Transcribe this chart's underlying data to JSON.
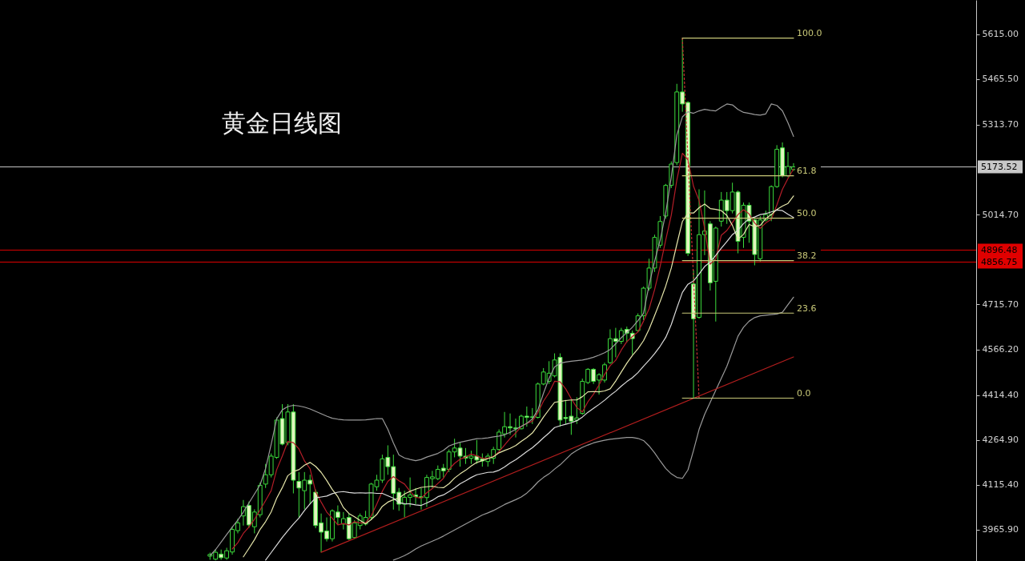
{
  "chart_data": {
    "type": "candlestick",
    "title": "黄金日线图",
    "color": "#3cdc3c",
    "categories": [
      null,
      null,
      null,
      null,
      null,
      null,
      null,
      null,
      null,
      null,
      null,
      null,
      null,
      null,
      null,
      null,
      null,
      null,
      null,
      null,
      null,
      null,
      null,
      null,
      null,
      null,
      null,
      null,
      null,
      null,
      null,
      null,
      null,
      null,
      null,
      null,
      null,
      null,
      null,
      null,
      null,
      null,
      null,
      null,
      null,
      null,
      null,
      null,
      null,
      null,
      null,
      null,
      null,
      null,
      null,
      null,
      null,
      null,
      null,
      null,
      null,
      null,
      null,
      null,
      null,
      null,
      null,
      null,
      null,
      null,
      null,
      null,
      null,
      null,
      null,
      null,
      null,
      null,
      null,
      null,
      null,
      null,
      null,
      null,
      null,
      null,
      null,
      null,
      null,
      null,
      null,
      null,
      null,
      null,
      null,
      null,
      null,
      null,
      null,
      null,
      null,
      null,
      null,
      null,
      null,
      null
    ],
    "ohlc": [
      [
        3878,
        3890,
        3866,
        3884
      ],
      [
        3868,
        3900,
        3864,
        3891
      ],
      [
        3885,
        3900,
        3866,
        3873
      ],
      [
        3872,
        3906,
        3866,
        3896
      ],
      [
        3892,
        3976,
        3883,
        3967
      ],
      [
        3963,
        4003,
        3954,
        3989
      ],
      [
        4012,
        4065,
        3980,
        4043
      ],
      [
        4047,
        4060,
        3972,
        3982
      ],
      [
        3976,
        4034,
        3954,
        4025
      ],
      [
        4016,
        4123,
        4007,
        4114
      ],
      [
        4118,
        4185,
        4105,
        4149
      ],
      [
        4149,
        4220,
        4140,
        4211
      ],
      [
        4207,
        4340,
        4202,
        4331
      ],
      [
        4336,
        4384,
        4247,
        4251
      ],
      [
        4256,
        4384,
        4247,
        4358
      ],
      [
        4358,
        4384,
        4087,
        4131
      ],
      [
        4127,
        4158,
        4007,
        4105
      ],
      [
        4096,
        4158,
        4034,
        4131
      ],
      [
        4131,
        4149,
        4051,
        4118
      ],
      [
        4091,
        4100,
        3971,
        3980
      ],
      [
        3989,
        4020,
        3891,
        3958
      ],
      [
        3962,
        4007,
        3927,
        3936
      ],
      [
        3936,
        4034,
        3927,
        4029
      ],
      [
        4025,
        4047,
        3984,
        4007
      ],
      [
        3985,
        4025,
        3967,
        4003
      ],
      [
        4007,
        4020,
        3932,
        3936
      ],
      [
        3940,
        3998,
        3936,
        3989
      ],
      [
        3980,
        4020,
        3967,
        4012
      ],
      [
        3985,
        4029,
        3980,
        4007
      ],
      [
        4007,
        4122,
        3998,
        4118
      ],
      [
        4109,
        4149,
        4096,
        4131
      ],
      [
        4131,
        4216,
        4122,
        4202
      ],
      [
        4207,
        4247,
        4149,
        4176
      ],
      [
        4176,
        4216,
        4033,
        4087
      ],
      [
        4091,
        4105,
        4029,
        4051
      ],
      [
        4051,
        4096,
        4007,
        4074
      ],
      [
        4074,
        4140,
        4042,
        4082
      ],
      [
        4082,
        4105,
        4051,
        4076
      ],
      [
        4076,
        4105,
        4033,
        4073
      ],
      [
        4073,
        4149,
        4042,
        4140
      ],
      [
        4136,
        4162,
        4105,
        4142
      ],
      [
        4136,
        4180,
        4131,
        4167
      ],
      [
        4171,
        4185,
        4140,
        4162
      ],
      [
        4167,
        4233,
        4158,
        4225
      ],
      [
        4225,
        4269,
        4207,
        4238
      ],
      [
        4238,
        4256,
        4176,
        4211
      ],
      [
        4211,
        4238,
        4185,
        4204
      ],
      [
        4204,
        4229,
        4185,
        4211
      ],
      [
        4211,
        4265,
        4185,
        4198
      ],
      [
        4202,
        4220,
        4176,
        4195
      ],
      [
        4193,
        4220,
        4176,
        4211
      ],
      [
        4204,
        4242,
        4185,
        4233
      ],
      [
        4233,
        4300,
        4229,
        4291
      ],
      [
        4285,
        4358,
        4273,
        4309
      ],
      [
        4309,
        4353,
        4282,
        4305
      ],
      [
        4305,
        4336,
        4273,
        4302
      ],
      [
        4302,
        4349,
        4300,
        4344
      ],
      [
        4344,
        4376,
        4309,
        4340
      ],
      [
        4340,
        4371,
        4318,
        4342
      ],
      [
        4340,
        4456,
        4336,
        4451
      ],
      [
        4451,
        4504,
        4447,
        4491
      ],
      [
        4460,
        4527,
        4451,
        4487
      ],
      [
        4478,
        4553,
        4473,
        4531
      ],
      [
        4540,
        4553,
        4309,
        4331
      ],
      [
        4340,
        4398,
        4318,
        4336
      ],
      [
        4344,
        4398,
        4282,
        4327
      ],
      [
        4331,
        4407,
        4318,
        4338
      ],
      [
        4353,
        4469,
        4349,
        4460
      ],
      [
        4456,
        4504,
        4451,
        4500
      ],
      [
        4500,
        4504,
        4451,
        4460
      ],
      [
        4464,
        4487,
        4416,
        4482
      ],
      [
        4464,
        4522,
        4456,
        4515
      ],
      [
        4522,
        4633,
        4518,
        4602
      ],
      [
        4602,
        4638,
        4540,
        4593
      ],
      [
        4593,
        4638,
        4584,
        4629
      ],
      [
        4633,
        4642,
        4589,
        4620
      ],
      [
        4620,
        4629,
        4549,
        4602
      ],
      [
        4629,
        4686,
        4624,
        4678
      ],
      [
        4678,
        4775,
        4664,
        4770
      ],
      [
        4770,
        4868,
        4762,
        4837
      ],
      [
        4837,
        4948,
        4824,
        4939
      ],
      [
        4913,
        5010,
        4904,
        4992
      ],
      [
        5010,
        5117,
        5001,
        5112
      ],
      [
        5112,
        5192,
        5103,
        5183
      ],
      [
        5188,
        5450,
        5179,
        5423
      ],
      [
        5423,
        5602,
        5357,
        5383
      ],
      [
        5388,
        5392,
        4877,
        4886
      ],
      [
        4784,
        4830,
        4404,
        4668
      ],
      [
        4673,
        5099,
        4668,
        4948
      ],
      [
        4948,
        5095,
        4880,
        4960
      ],
      [
        4984,
        4993,
        4762,
        4788
      ],
      [
        4793,
        4975,
        4659,
        4970
      ],
      [
        4993,
        5090,
        4975,
        5063
      ],
      [
        5063,
        5090,
        4984,
        5028
      ],
      [
        5028,
        5121,
        5019,
        5090
      ],
      [
        5090,
        5095,
        4886,
        4926
      ],
      [
        4939,
        5055,
        4904,
        5046
      ],
      [
        5046,
        5055,
        4921,
        4993
      ],
      [
        4997,
        5001,
        4846,
        4882
      ],
      [
        4868,
        5010,
        4859,
        4997
      ],
      [
        4997,
        5028,
        4992,
        5015
      ],
      [
        5015,
        5112,
        4993,
        5108
      ],
      [
        5108,
        5246,
        5104,
        5232
      ],
      [
        5237,
        5255,
        5139,
        5144
      ],
      [
        5144,
        5223,
        5139,
        5175
      ],
      [
        5165,
        5186,
        5160,
        5173.52
      ]
    ],
    "colors": [
      "#000000",
      "#000000",
      "#e1f5be",
      "#000000",
      "#000000",
      "#000000",
      "#000000",
      "#e1f5be",
      "#000000",
      "#000000",
      "#000000",
      "#000000",
      "#000000",
      "#e1f5be",
      "#000000",
      "#e1f5be",
      "#e1f5be",
      "#000000",
      "#e1f5be",
      "#e1f5be",
      "#e1f5be",
      "#e1f5be",
      "#000000",
      "#e1f5be",
      "#000000",
      "#e1f5be",
      "#000000",
      "#000000",
      "#000000",
      "#000000",
      "#000000",
      "#000000",
      "#e1f5be",
      "#e1f5be",
      "#e1f5be",
      "#000000",
      "#000000",
      "#e1f5be",
      "#e1f5be",
      "#000000",
      "#000000",
      "#000000",
      "#e1f5be",
      "#000000",
      "#000000",
      "#e1f5be",
      "#e1f5be",
      "#000000",
      "#e1f5be",
      "#e1f5be",
      "#000000",
      "#000000",
      "#000000",
      "#000000",
      "#e1f5be",
      "#e1f5be",
      "#000000",
      "#e1f5be",
      "#000000",
      "#000000",
      "#000000",
      "#000000",
      "#000000",
      "#e1f5be",
      "#e1f5be",
      "#e1f5be",
      "#000000",
      "#000000",
      "#000000",
      "#e1f5be",
      "#000000",
      "#000000",
      "#000000",
      "#e1f5be",
      "#000000",
      "#e1f5be",
      "#e1f5be",
      "#000000",
      "#000000",
      "#000000",
      "#000000",
      "#000000",
      "#000000",
      "#000000",
      "#000000",
      "#e1f5be",
      "#e1f5be",
      "#e1f5be",
      "#000000",
      "#000000",
      "#e1f5be",
      "#000000",
      "#000000",
      "#e1f5be",
      "#000000",
      "#e1f5be",
      "#000000",
      "#e1f5be",
      "#e1f5be",
      "#000000",
      "#000000",
      "#000000",
      "#000000",
      "#e1f5be",
      "#000000",
      "#000000"
    ],
    "series": [
      {
        "type": "line",
        "color": "#b41e28",
        "values": [
          null,
          null,
          null,
          null,
          3902,
          3923,
          3954,
          3975,
          4001,
          4031,
          4063,
          4096,
          4166,
          4211,
          4260,
          4256,
          4235,
          4195,
          4169,
          4093,
          4058,
          4025,
          4004,
          3982,
          3987,
          3982,
          3993,
          3989,
          3989,
          4012,
          4051,
          4094,
          4127,
          4143,
          4129,
          4118,
          4094,
          4074,
          4071,
          4089,
          4103,
          4120,
          4137,
          4167,
          4187,
          4201,
          4208,
          4218,
          4212,
          4204,
          4204,
          4210,
          4226,
          4248,
          4270,
          4288,
          4310,
          4320,
          4327,
          4356,
          4394,
          4422,
          4460,
          4458,
          4435,
          4402,
          4373,
          4358,
          4392,
          4417,
          4448,
          4483,
          4512,
          4530,
          4564,
          4592,
          4609,
          4624,
          4660,
          4701,
          4765,
          4843,
          4930,
          5013,
          5130,
          5219,
          5197,
          5109,
          5062,
          4969,
          4850,
          4867,
          4946,
          4962,
          4988,
          5015,
          5031,
          5017,
          4987,
          4969,
          4987,
          4999,
          5047,
          5099,
          5135,
          5167
        ]
      },
      {
        "type": "line",
        "color": "#e6e6aa",
        "values": [
          null,
          null,
          null,
          null,
          null,
          null,
          3876,
          3904,
          3933,
          3967,
          3993,
          4025,
          4071,
          4106,
          4146,
          4160,
          4166,
          4181,
          4190,
          4177,
          4157,
          4130,
          4100,
          4076,
          4040,
          4020,
          4009,
          3997,
          3986,
          4000,
          4017,
          4044,
          4058,
          4066,
          4071,
          4085,
          4094,
          4101,
          4107,
          4109,
          4111,
          4107,
          4106,
          4119,
          4138,
          4152,
          4164,
          4178,
          4190,
          4196,
          4203,
          4209,
          4222,
          4230,
          4237,
          4246,
          4260,
          4273,
          4288,
          4313,
          4341,
          4366,
          4390,
          4393,
          4396,
          4398,
          4398,
          4409,
          4425,
          4426,
          4425,
          4428,
          4435,
          4461,
          4491,
          4520,
          4546,
          4568,
          4595,
          4633,
          4679,
          4726,
          4777,
          4837,
          4916,
          4992,
          5020,
          5020,
          5038,
          5050,
          5035,
          5032,
          5028,
          5012,
          4979,
          4933,
          4949,
          4982,
          4975,
          4979,
          5001,
          5015,
          5032,
          5043,
          5052,
          5077
        ]
      },
      {
        "type": "line",
        "color": "#dcdcdc",
        "values": [
          null,
          null,
          null,
          null,
          null,
          null,
          null,
          null,
          null,
          null,
          3865,
          3890,
          3915,
          3940,
          3963,
          3985,
          4005,
          4030,
          4052,
          4072,
          4075,
          4078,
          4086,
          4091,
          4093,
          4090,
          4088,
          4089,
          4088,
          4089,
          4087,
          4087,
          4079,
          4071,
          4056,
          4053,
          4052,
          4049,
          4047,
          4055,
          4064,
          4076,
          4082,
          4093,
          4105,
          4119,
          4129,
          4140,
          4149,
          4153,
          4157,
          4158,
          4164,
          4175,
          4188,
          4199,
          4212,
          4226,
          4239,
          4255,
          4272,
          4288,
          4306,
          4312,
          4317,
          4322,
          4329,
          4341,
          4357,
          4370,
          4383,
          4397,
          4413,
          4427,
          4444,
          4459,
          4472,
          4489,
          4510,
          4530,
          4552,
          4577,
          4606,
          4649,
          4704,
          4756,
          4783,
          4794,
          4817,
          4842,
          4857,
          4879,
          4903,
          4925,
          4948,
          4963,
          4985,
          5001,
          5007,
          5015,
          5018,
          5024,
          5030,
          5028,
          5016,
          5005
        ]
      },
      {
        "type": "line",
        "color": "#9a9a9a",
        "values": [
          3880,
          3900,
          3925,
          3950,
          3975,
          3998,
          4025,
          4055,
          4085,
          4115,
          4170,
          4250,
          4335,
          4365,
          4376,
          4380,
          4378,
          4374,
          4368,
          4360,
          4352,
          4344,
          4337,
          4334,
          4332,
          4331,
          4331,
          4331,
          4332,
          4334,
          4336,
          4336,
          4300,
          4255,
          4215,
          4205,
          4200,
          4196,
          4200,
          4208,
          4214,
          4220,
          4230,
          4245,
          4252,
          4257,
          4261,
          4265,
          4269,
          4270,
          4272,
          4275,
          4278,
          4282,
          4290,
          4300,
          4310,
          4320,
          4335,
          4365,
          4420,
          4470,
          4508,
          4520,
          4524,
          4527,
          4529,
          4531,
          4535,
          4540,
          4547,
          4555,
          4566,
          4585,
          4605,
          4622,
          4640,
          4662,
          4686,
          4780,
          4860,
          4930,
          5020,
          5140,
          5280,
          5340,
          5357,
          5352,
          5360,
          5365,
          5362,
          5360,
          5372,
          5383,
          5380,
          5365,
          5355,
          5352,
          5348,
          5346,
          5350,
          5383,
          5378,
          5360,
          5320,
          5275
        ]
      },
      {
        "type": "line",
        "color": "#9a9a9a",
        "values": [
          null,
          null,
          null,
          null,
          null,
          null,
          null,
          null,
          null,
          null,
          null,
          null,
          null,
          null,
          null,
          null,
          null,
          null,
          null,
          null,
          null,
          null,
          null,
          null,
          null,
          null,
          null,
          null,
          null,
          null,
          null,
          null,
          null,
          3865,
          3872,
          3880,
          3890,
          3902,
          3912,
          3920,
          3928,
          3936,
          3945,
          3955,
          3965,
          3975,
          3985,
          3995,
          4005,
          4015,
          4022,
          4030,
          4040,
          4050,
          4058,
          4066,
          4075,
          4088,
          4105,
          4125,
          4140,
          4152,
          4168,
          4182,
          4200,
          4218,
          4230,
          4240,
          4248,
          4255,
          4260,
          4264,
          4267,
          4269,
          4271,
          4273,
          4273,
          4270,
          4263,
          4245,
          4222,
          4195,
          4170,
          4152,
          4140,
          4137,
          4165,
          4230,
          4300,
          4350,
          4390,
          4430,
          4470,
          4510,
          4560,
          4610,
          4640,
          4660,
          4672,
          4678,
          4680,
          4682,
          4684,
          4690,
          4715,
          4740
        ]
      },
      {
        "type": "line",
        "color": "#b41e1e",
        "values": [
          null,
          null,
          null,
          null,
          null,
          null,
          null,
          null,
          null,
          null,
          null,
          null,
          null,
          null,
          null,
          null,
          null,
          null,
          null,
          null,
          3891,
          null,
          null,
          null,
          null,
          null,
          null,
          null,
          null,
          null,
          null,
          null,
          null,
          null,
          null,
          null,
          null,
          null,
          null,
          null,
          null,
          null,
          null,
          null,
          null,
          null,
          null,
          null,
          null,
          null,
          null,
          null,
          null,
          null,
          null,
          null,
          null,
          null,
          null,
          null,
          null,
          null,
          null,
          null,
          null,
          null,
          null,
          null,
          null,
          null,
          null,
          null,
          null,
          null,
          null,
          null,
          null,
          null,
          null,
          null,
          null,
          null,
          null,
          null,
          null,
          null,
          null,
          null,
          null,
          null,
          null,
          null,
          null,
          null,
          null,
          null,
          null,
          null,
          null,
          null,
          null,
          null,
          null,
          null,
          null,
          4541
        ]
      },
      {
        "type": "line",
        "color": "#c83232",
        "line_style": "dotted",
        "values": [
          null,
          null,
          null,
          null,
          null,
          null,
          null,
          null,
          null,
          null,
          null,
          null,
          null,
          null,
          null,
          null,
          null,
          null,
          null,
          null,
          null,
          null,
          null,
          null,
          null,
          null,
          null,
          null,
          null,
          null,
          null,
          null,
          null,
          null,
          null,
          null,
          null,
          null,
          null,
          null,
          null,
          null,
          null,
          null,
          null,
          null,
          null,
          null,
          null,
          null,
          null,
          null,
          null,
          null,
          null,
          null,
          null,
          null,
          null,
          null,
          null,
          null,
          null,
          null,
          null,
          null,
          null,
          null,
          null,
          null,
          null,
          null,
          null,
          null,
          null,
          null,
          null,
          null,
          null,
          null,
          null,
          null,
          null,
          null,
          null,
          5602,
          null,
          null,
          4404,
          null,
          null,
          null,
          null,
          null,
          null,
          null,
          null,
          null,
          null,
          null,
          null,
          null,
          null,
          null,
          null,
          null
        ]
      },
      {
        "type": "line",
        "name": "100.0",
        "color": "#c8c878",
        "values": [
          null,
          null,
          null,
          null,
          null,
          null,
          null,
          null,
          null,
          null,
          null,
          null,
          null,
          null,
          null,
          null,
          null,
          null,
          null,
          null,
          null,
          null,
          null,
          null,
          null,
          null,
          null,
          null,
          null,
          null,
          null,
          null,
          null,
          null,
          null,
          null,
          null,
          null,
          null,
          null,
          null,
          null,
          null,
          null,
          null,
          null,
          null,
          null,
          null,
          null,
          null,
          null,
          null,
          null,
          null,
          null,
          null,
          null,
          null,
          null,
          null,
          null,
          null,
          null,
          null,
          null,
          null,
          null,
          null,
          null,
          null,
          null,
          null,
          null,
          null,
          null,
          null,
          null,
          null,
          null,
          null,
          null,
          null,
          null,
          null,
          5602,
          null,
          null,
          null,
          null,
          null,
          null,
          null,
          null,
          null,
          null,
          null,
          null,
          null,
          null,
          null,
          null,
          null,
          null,
          null,
          5602
        ]
      },
      {
        "type": "line",
        "name": "61.8",
        "color": "#c8c878",
        "values": [
          null,
          null,
          null,
          null,
          null,
          null,
          null,
          null,
          null,
          null,
          null,
          null,
          null,
          null,
          null,
          null,
          null,
          null,
          null,
          null,
          null,
          null,
          null,
          null,
          null,
          null,
          null,
          null,
          null,
          null,
          null,
          null,
          null,
          null,
          null,
          null,
          null,
          null,
          null,
          null,
          null,
          null,
          null,
          null,
          null,
          null,
          null,
          null,
          null,
          null,
          null,
          null,
          null,
          null,
          null,
          null,
          null,
          null,
          null,
          null,
          null,
          null,
          null,
          null,
          null,
          null,
          null,
          null,
          null,
          null,
          null,
          null,
          null,
          null,
          null,
          null,
          null,
          null,
          null,
          null,
          null,
          null,
          null,
          null,
          null,
          5144,
          null,
          null,
          null,
          null,
          null,
          null,
          null,
          null,
          null,
          null,
          null,
          null,
          null,
          null,
          null,
          null,
          null,
          null,
          null,
          5144
        ]
      },
      {
        "type": "line",
        "name": "50.0",
        "color": "#c8c878",
        "values": [
          null,
          null,
          null,
          null,
          null,
          null,
          null,
          null,
          null,
          null,
          null,
          null,
          null,
          null,
          null,
          null,
          null,
          null,
          null,
          null,
          null,
          null,
          null,
          null,
          null,
          null,
          null,
          null,
          null,
          null,
          null,
          null,
          null,
          null,
          null,
          null,
          null,
          null,
          null,
          null,
          null,
          null,
          null,
          null,
          null,
          null,
          null,
          null,
          null,
          null,
          null,
          null,
          null,
          null,
          null,
          null,
          null,
          null,
          null,
          null,
          null,
          null,
          null,
          null,
          null,
          null,
          null,
          null,
          null,
          null,
          null,
          null,
          null,
          null,
          null,
          null,
          null,
          null,
          null,
          null,
          null,
          null,
          null,
          null,
          null,
          5003,
          null,
          null,
          null,
          null,
          null,
          null,
          null,
          null,
          null,
          null,
          null,
          null,
          null,
          null,
          null,
          null,
          null,
          null,
          null,
          5003
        ]
      },
      {
        "type": "line",
        "name": "38.2",
        "color": "#c8c878",
        "values": [
          null,
          null,
          null,
          null,
          null,
          null,
          null,
          null,
          null,
          null,
          null,
          null,
          null,
          null,
          null,
          null,
          null,
          null,
          null,
          null,
          null,
          null,
          null,
          null,
          null,
          null,
          null,
          null,
          null,
          null,
          null,
          null,
          null,
          null,
          null,
          null,
          null,
          null,
          null,
          null,
          null,
          null,
          null,
          null,
          null,
          null,
          null,
          null,
          null,
          null,
          null,
          null,
          null,
          null,
          null,
          null,
          null,
          null,
          null,
          null,
          null,
          null,
          null,
          null,
          null,
          null,
          null,
          null,
          null,
          null,
          null,
          null,
          null,
          null,
          null,
          null,
          null,
          null,
          null,
          null,
          null,
          null,
          null,
          null,
          null,
          4862,
          null,
          null,
          null,
          null,
          null,
          null,
          null,
          null,
          null,
          null,
          null,
          null,
          null,
          null,
          null,
          null,
          null,
          null,
          null,
          4862
        ]
      },
      {
        "type": "line",
        "name": "23.6",
        "color": "#c8c878",
        "values": [
          null,
          null,
          null,
          null,
          null,
          null,
          null,
          null,
          null,
          null,
          null,
          null,
          null,
          null,
          null,
          null,
          null,
          null,
          null,
          null,
          null,
          null,
          null,
          null,
          null,
          null,
          null,
          null,
          null,
          null,
          null,
          null,
          null,
          null,
          null,
          null,
          null,
          null,
          null,
          null,
          null,
          null,
          null,
          null,
          null,
          null,
          null,
          null,
          null,
          null,
          null,
          null,
          null,
          null,
          null,
          null,
          null,
          null,
          null,
          null,
          null,
          null,
          null,
          null,
          null,
          null,
          null,
          null,
          null,
          null,
          null,
          null,
          null,
          null,
          null,
          null,
          null,
          null,
          null,
          null,
          null,
          null,
          null,
          null,
          null,
          4687,
          null,
          null,
          null,
          null,
          null,
          null,
          null,
          null,
          null,
          null,
          null,
          null,
          null,
          null,
          null,
          null,
          null,
          null,
          null,
          4687
        ]
      },
      {
        "type": "line",
        "name": "0.0",
        "color": "#c8c878",
        "values": [
          null,
          null,
          null,
          null,
          null,
          null,
          null,
          null,
          null,
          null,
          null,
          null,
          null,
          null,
          null,
          null,
          null,
          null,
          null,
          null,
          null,
          null,
          null,
          null,
          null,
          null,
          null,
          null,
          null,
          null,
          null,
          null,
          null,
          null,
          null,
          null,
          null,
          null,
          null,
          null,
          null,
          null,
          null,
          null,
          null,
          null,
          null,
          null,
          null,
          null,
          null,
          null,
          null,
          null,
          null,
          null,
          null,
          null,
          null,
          null,
          null,
          null,
          null,
          null,
          null,
          null,
          null,
          null,
          null,
          null,
          null,
          null,
          null,
          null,
          null,
          null,
          null,
          null,
          null,
          null,
          null,
          null,
          null,
          null,
          null,
          4404,
          null,
          null,
          null,
          null,
          null,
          null,
          null,
          null,
          null,
          null,
          null,
          null,
          null,
          null,
          null,
          null,
          null,
          null,
          null,
          4404
        ]
      }
    ],
    "ylim": [
      3862,
      5729
    ],
    "yticks": [
      {
        "value": 5615,
        "label": "5615.00"
      },
      {
        "value": 5465.5,
        "label": "5465.50"
      },
      {
        "value": 5313.7,
        "label": "5313.70"
      },
      {
        "value": 5014.7,
        "label": "5014.70"
      },
      {
        "value": 4715.7,
        "label": "4715.70"
      },
      {
        "value": 4566.2,
        "label": "4566.20"
      },
      {
        "value": 4414.4,
        "label": "4414.40"
      },
      {
        "value": 4264.9,
        "label": "4264.90"
      },
      {
        "value": 4115.4,
        "label": "4115.40"
      },
      {
        "value": 3965.9,
        "label": "3965.90"
      }
    ],
    "ref_lines": [
      {
        "axis": "y",
        "value": 5173.52,
        "label": "5173.52",
        "color": "#c8c8c8"
      },
      {
        "axis": "y",
        "value": 4896.48,
        "label": "4896.48",
        "color": "#e00000"
      },
      {
        "axis": "y",
        "value": 4856.75,
        "label": "4856.75",
        "color": "#e00000"
      }
    ],
    "tick_labels": "y"
  }
}
